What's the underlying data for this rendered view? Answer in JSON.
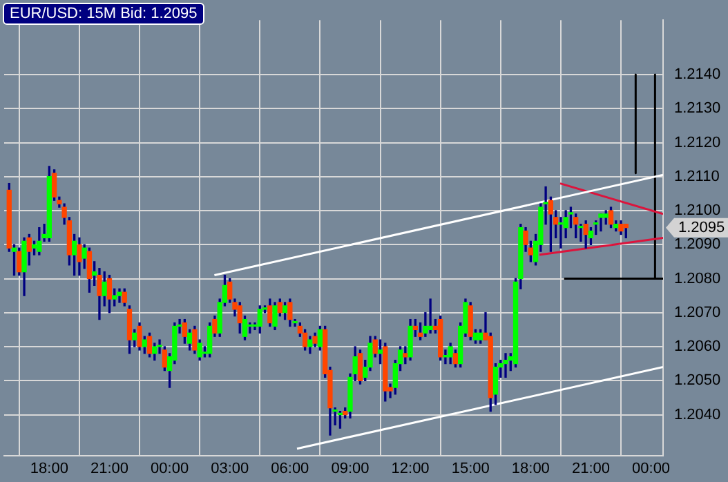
{
  "chart_data": {
    "type": "candlestick",
    "title": "EUR/USD: 15M Bid: 1.2095",
    "x": [
      "--01-01T16:00",
      "--01-01T16:15",
      "--01-01T16:30",
      "--01-01T16:45",
      "--01-01T17:00",
      "--01-01T17:15",
      "--01-01T17:30",
      "--01-01T17:45",
      "--01-01T18:00",
      "--01-01T18:15",
      "--01-01T18:30",
      "--01-01T18:45",
      "--01-01T19:00",
      "--01-01T19:15",
      "--01-01T19:30",
      "--01-01T19:45",
      "--01-01T20:00",
      "--01-01T20:15",
      "--01-01T20:30",
      "--01-01T20:45",
      "--01-01T21:00",
      "--01-01T21:15",
      "--01-01T21:30",
      "--01-01T21:45",
      "--01-01T22:00",
      "--01-01T22:15",
      "--01-01T22:30",
      "--01-01T22:45",
      "--01-01T23:00",
      "--01-01T23:15",
      "--01-01T23:30",
      "--01-01T23:45",
      "--01-02T00:00",
      "--01-02T00:15",
      "--01-02T00:30",
      "--01-02T00:45",
      "--01-02T01:00",
      "--01-02T01:15",
      "--01-02T01:30",
      "--01-02T01:45",
      "--01-02T02:00",
      "--01-02T02:15",
      "--01-02T02:30",
      "--01-02T02:45",
      "--01-02T03:00",
      "--01-02T03:15",
      "--01-02T03:30",
      "--01-02T03:45",
      "--01-02T04:00",
      "--01-02T04:15",
      "--01-02T04:30",
      "--01-02T04:45",
      "--01-02T05:00",
      "--01-02T05:15",
      "--01-02T05:30",
      "--01-02T05:45",
      "--01-02T06:00",
      "--01-02T06:15",
      "--01-02T06:30",
      "--01-02T06:45",
      "--01-02T07:00",
      "--01-02T07:15",
      "--01-02T07:30",
      "--01-02T07:45",
      "--01-02T08:00",
      "--01-02T08:15",
      "--01-02T08:30",
      "--01-02T08:45",
      "--01-02T09:00",
      "--01-02T09:15",
      "--01-02T09:30",
      "--01-02T09:45",
      "--01-02T10:00",
      "--01-02T10:15",
      "--01-02T10:30",
      "--01-02T10:45",
      "--01-02T11:00",
      "--01-02T11:15",
      "--01-02T11:30",
      "--01-02T11:45",
      "--01-02T12:00",
      "--01-02T12:15",
      "--01-02T12:30",
      "--01-02T12:45",
      "--01-02T13:00",
      "--01-02T13:15",
      "--01-02T13:30",
      "--01-02T13:45",
      "--01-02T14:00",
      "--01-02T14:15",
      "--01-02T14:30",
      "--01-02T14:45",
      "--01-02T15:00",
      "--01-02T15:15",
      "--01-02T15:30",
      "--01-02T15:45",
      "--01-02T16:00",
      "--01-02T16:15",
      "--01-02T16:30",
      "--01-02T16:45",
      "--01-02T17:00",
      "--01-02T17:15",
      "--01-02T17:30",
      "--01-02T17:45",
      "--01-02T18:00",
      "--01-02T18:15",
      "--01-02T18:30",
      "--01-02T18:45",
      "--01-02T19:00",
      "--01-02T19:15",
      "--01-02T19:30",
      "--01-02T19:45",
      "--01-02T20:00",
      "--01-02T20:15",
      "--01-02T20:30",
      "--01-02T20:45",
      "--01-02T21:00",
      "--01-02T21:15",
      "--01-02T21:30",
      "--01-02T21:45",
      "--01-02T22:00",
      "--01-02T22:15",
      "--01-02T22:30",
      "--01-02T22:45"
    ],
    "ohlc": [
      [
        1.2106,
        1.2108,
        1.2088,
        1.2089
      ],
      [
        1.2088,
        1.209,
        1.2081,
        1.2089
      ],
      [
        1.2088,
        1.2089,
        1.2081,
        1.2082
      ],
      [
        1.2082,
        1.2092,
        1.2075,
        1.2091
      ],
      [
        1.2092,
        1.2093,
        1.2084,
        1.2088
      ],
      [
        1.2089,
        1.2091,
        1.2087,
        1.209
      ],
      [
        1.2088,
        1.2095,
        1.2087,
        1.2091
      ],
      [
        1.2092,
        1.2096,
        1.2091,
        1.2093
      ],
      [
        1.2092,
        1.2113,
        1.2091,
        1.211
      ],
      [
        1.2111,
        1.2112,
        1.2103,
        1.2104
      ],
      [
        1.2103,
        1.2104,
        1.2101,
        1.2102
      ],
      [
        1.2101,
        1.2102,
        1.2096,
        1.2098
      ],
      [
        1.2097,
        1.2098,
        1.2084,
        1.2087
      ],
      [
        1.2087,
        1.2093,
        1.2081,
        1.2091
      ],
      [
        1.209,
        1.2092,
        1.2081,
        1.2085
      ],
      [
        1.2086,
        1.209,
        1.2083,
        1.2089
      ],
      [
        1.2088,
        1.2089,
        1.2076,
        1.208
      ],
      [
        1.2081,
        1.2085,
        1.2078,
        1.2082
      ],
      [
        1.2081,
        1.2083,
        1.2068,
        1.2075
      ],
      [
        1.2075,
        1.2082,
        1.2072,
        1.2079
      ],
      [
        1.208,
        1.2081,
        1.207,
        1.2074
      ],
      [
        1.2074,
        1.2077,
        1.2072,
        1.2075
      ],
      [
        1.2075,
        1.2077,
        1.2073,
        1.2076
      ],
      [
        1.2076,
        1.2077,
        1.2072,
        1.2073
      ],
      [
        1.2071,
        1.2072,
        1.2058,
        1.2062
      ],
      [
        1.2062,
        1.2065,
        1.206,
        1.2064
      ],
      [
        1.2066,
        1.2067,
        1.2059,
        1.206
      ],
      [
        1.206,
        1.2063,
        1.2058,
        1.2062
      ],
      [
        1.2063,
        1.2064,
        1.2057,
        1.2058
      ],
      [
        1.2058,
        1.2061,
        1.2056,
        1.206
      ],
      [
        1.206,
        1.2062,
        1.2058,
        1.206
      ],
      [
        1.2059,
        1.206,
        1.2053,
        1.2054
      ],
      [
        1.2053,
        1.2058,
        1.2048,
        1.2057
      ],
      [
        1.2056,
        1.2067,
        1.2055,
        1.2066
      ],
      [
        1.2066,
        1.2068,
        1.2064,
        1.2066
      ],
      [
        1.2067,
        1.2068,
        1.2061,
        1.2063
      ],
      [
        1.2061,
        1.2065,
        1.2059,
        1.2064
      ],
      [
        1.2065,
        1.2066,
        1.2058,
        1.2059
      ],
      [
        1.2057,
        1.2062,
        1.2056,
        1.2061
      ],
      [
        1.2058,
        1.206,
        1.2057,
        1.2058
      ],
      [
        1.2058,
        1.2067,
        1.2057,
        1.2066
      ],
      [
        1.2068,
        1.2069,
        1.2063,
        1.2064
      ],
      [
        1.2064,
        1.2074,
        1.2063,
        1.2073
      ],
      [
        1.2073,
        1.2081,
        1.2072,
        1.2078
      ],
      [
        1.2079,
        1.208,
        1.2073,
        1.2074
      ],
      [
        1.2073,
        1.2074,
        1.2069,
        1.2071
      ],
      [
        1.2072,
        1.2073,
        1.2064,
        1.2067
      ],
      [
        1.2063,
        1.2069,
        1.2062,
        1.2068
      ],
      [
        1.2066,
        1.2067,
        1.2064,
        1.2066
      ],
      [
        1.2066,
        1.2067,
        1.2065,
        1.2066
      ],
      [
        1.2066,
        1.2072,
        1.2064,
        1.2071
      ],
      [
        1.2071,
        1.2072,
        1.207,
        1.2071
      ],
      [
        1.2072,
        1.2074,
        1.2066,
        1.2067
      ],
      [
        1.2066,
        1.2073,
        1.2065,
        1.2072
      ],
      [
        1.2073,
        1.2074,
        1.2069,
        1.207
      ],
      [
        1.207,
        1.2073,
        1.2068,
        1.2072
      ],
      [
        1.2073,
        1.2074,
        1.2066,
        1.2068
      ],
      [
        1.2067,
        1.2068,
        1.2066,
        1.2067
      ],
      [
        1.2066,
        1.2067,
        1.2063,
        1.2064
      ],
      [
        1.2064,
        1.2065,
        1.2059,
        1.206
      ],
      [
        1.206,
        1.2063,
        1.2058,
        1.2062
      ],
      [
        1.2063,
        1.2064,
        1.206,
        1.2061
      ],
      [
        1.206,
        1.2066,
        1.2059,
        1.2065
      ],
      [
        1.2065,
        1.2066,
        1.2051,
        1.2052
      ],
      [
        1.2053,
        1.2054,
        1.2034,
        1.2042
      ],
      [
        1.2041,
        1.2042,
        1.2037,
        1.2041
      ],
      [
        1.204,
        1.2041,
        1.2036,
        1.204
      ],
      [
        1.2041,
        1.2042,
        1.2039,
        1.204
      ],
      [
        1.2041,
        1.2052,
        1.2039,
        1.2051
      ],
      [
        1.2052,
        1.206,
        1.205,
        1.2057
      ],
      [
        1.2058,
        1.2059,
        1.2049,
        1.205
      ],
      [
        1.2051,
        1.2056,
        1.205,
        1.2054
      ],
      [
        1.2054,
        1.2063,
        1.2053,
        1.2061
      ],
      [
        1.2062,
        1.2063,
        1.2057,
        1.2058
      ],
      [
        1.2058,
        1.2062,
        1.2055,
        1.2059
      ],
      [
        1.206,
        1.2061,
        1.2044,
        1.2047
      ],
      [
        1.2048,
        1.2049,
        1.2045,
        1.2047
      ],
      [
        1.2048,
        1.2056,
        1.2046,
        1.2055
      ],
      [
        1.2055,
        1.206,
        1.2053,
        1.2059
      ],
      [
        1.2058,
        1.206,
        1.2055,
        1.2057
      ],
      [
        1.2057,
        1.2068,
        1.2056,
        1.2066
      ],
      [
        1.2066,
        1.2068,
        1.2063,
        1.2065
      ],
      [
        1.2064,
        1.2067,
        1.2062,
        1.2063
      ],
      [
        1.2064,
        1.207,
        1.2063,
        1.2066
      ],
      [
        1.2065,
        1.2074,
        1.2064,
        1.2066
      ],
      [
        1.2066,
        1.2068,
        1.2064,
        1.2065
      ],
      [
        1.2068,
        1.2069,
        1.2056,
        1.2057
      ],
      [
        1.2057,
        1.2059,
        1.2055,
        1.2057
      ],
      [
        1.2057,
        1.2061,
        1.2055,
        1.206
      ],
      [
        1.2058,
        1.2059,
        1.2054,
        1.2055
      ],
      [
        1.2055,
        1.2067,
        1.2054,
        1.2066
      ],
      [
        1.2064,
        1.2074,
        1.2063,
        1.2073
      ],
      [
        1.2072,
        1.2073,
        1.2062,
        1.2063
      ],
      [
        1.2062,
        1.2065,
        1.2061,
        1.2064
      ],
      [
        1.2062,
        1.2065,
        1.2061,
        1.2064
      ],
      [
        1.2064,
        1.207,
        1.2062,
        1.2062
      ],
      [
        1.2063,
        1.2064,
        1.2041,
        1.2045
      ],
      [
        1.2046,
        1.2055,
        1.2043,
        1.2054
      ],
      [
        1.2054,
        1.2056,
        1.2051,
        1.2055
      ],
      [
        1.2055,
        1.2058,
        1.2051,
        1.2056
      ],
      [
        1.2056,
        1.2058,
        1.2053,
        1.2057
      ],
      [
        1.2055,
        1.208,
        1.2054,
        1.2079
      ],
      [
        1.208,
        1.2096,
        1.2077,
        1.2095
      ],
      [
        1.2094,
        1.2095,
        1.2088,
        1.209
      ],
      [
        1.2089,
        1.2091,
        1.2085,
        1.2087
      ],
      [
        1.2085,
        1.2093,
        1.2084,
        1.2091
      ],
      [
        1.209,
        1.2102,
        1.2088,
        1.2101
      ],
      [
        1.2102,
        1.2107,
        1.2096,
        1.2102
      ],
      [
        1.2103,
        1.2104,
        1.2088,
        1.2099
      ],
      [
        1.2098,
        1.21,
        1.2092,
        1.2096
      ],
      [
        1.2096,
        1.2098,
        1.2089,
        1.2096
      ],
      [
        1.2095,
        1.21,
        1.2092,
        1.2098
      ],
      [
        1.2099,
        1.2101,
        1.2095,
        1.2099
      ],
      [
        1.2098,
        1.2099,
        1.2092,
        1.2096
      ],
      [
        1.2095,
        1.2096,
        1.2091,
        1.2095
      ],
      [
        1.2096,
        1.2097,
        1.2089,
        1.2093
      ],
      [
        1.2092,
        1.2095,
        1.209,
        1.2094
      ],
      [
        1.2096,
        1.2097,
        1.2093,
        1.2096
      ],
      [
        1.2098,
        1.2099,
        1.2094,
        1.2099
      ],
      [
        1.2098,
        1.21,
        1.2096,
        1.2099
      ],
      [
        1.21,
        1.2101,
        1.2095,
        1.2096
      ],
      [
        1.2095,
        1.2097,
        1.2094,
        1.2096
      ],
      [
        1.2096,
        1.2097,
        1.2093,
        1.2094
      ],
      [
        1.2096,
        1.2096,
        1.2092,
        1.2095
      ]
    ],
    "series": [
      {
        "type": "line",
        "color": "#ffffff",
        "x": [
          "--01-02T02:14",
          "--01-03T00:36"
        ],
        "values": [
          1.2081,
          1.21105
        ]
      },
      {
        "type": "line",
        "color": "#ffffff",
        "x": [
          "--01-02T06:21",
          "--01-03T00:36"
        ],
        "values": [
          1.203,
          1.2054
        ]
      },
      {
        "type": "line",
        "color": "#dc143c",
        "x": [
          "--01-02T19:28",
          "--01-03T00:36"
        ],
        "values": [
          1.2108,
          1.2099
        ]
      },
      {
        "type": "line",
        "color": "#dc143c",
        "x": [
          "--01-02T18:26",
          "--01-03T00:36"
        ],
        "values": [
          1.2087,
          1.2092
        ]
      },
      {
        "type": "line",
        "color": "#000000",
        "x": [
          "--01-02T23:14",
          "--01-02T23:14"
        ],
        "values": [
          1.214,
          1.2111
        ]
      },
      {
        "type": "line",
        "color": "#000000",
        "x": [
          "--01-03T00:12",
          "--01-03T00:12"
        ],
        "values": [
          1.214,
          1.208
        ]
      },
      {
        "type": "line",
        "color": "#000000",
        "x": [
          "--01-02T19:40",
          "--01-03T00:36"
        ],
        "values": [
          1.208,
          1.208
        ]
      }
    ],
    "xlim": [
      "--01-01T15:45",
      "--01-03T00:36"
    ],
    "xticks": [
      {
        "value": "--01-01T18:00",
        "label": "18:00"
      },
      {
        "value": "--01-01T21:00",
        "label": "21:00"
      },
      {
        "value": "--01-02T00:00",
        "label": "00:00"
      },
      {
        "value": "--01-02T03:00",
        "label": "03:00"
      },
      {
        "value": "--01-02T06:00",
        "label": "06:00"
      },
      {
        "value": "--01-02T09:00",
        "label": "09:00"
      },
      {
        "value": "--01-02T12:00",
        "label": "12:00"
      },
      {
        "value": "--01-02T15:00",
        "label": "15:00"
      },
      {
        "value": "--01-02T18:00",
        "label": "18:00"
      },
      {
        "value": "--01-02T21:00",
        "label": "21:00"
      },
      {
        "value": "--01-03T00:00",
        "label": "00:00"
      }
    ],
    "ylim": [
      1.2028,
      1.2156
    ],
    "yticks": [
      {
        "value": 1.204,
        "label": "1.2040"
      },
      {
        "value": 1.205,
        "label": "1.2050"
      },
      {
        "value": 1.206,
        "label": "1.2060"
      },
      {
        "value": 1.207,
        "label": "1.2070"
      },
      {
        "value": 1.208,
        "label": "1.2080"
      },
      {
        "value": 1.209,
        "label": "1.2090"
      },
      {
        "value": 1.21,
        "label": "1.2100"
      },
      {
        "value": 1.211,
        "label": "1.2110"
      },
      {
        "value": 1.212,
        "label": "1.2120"
      },
      {
        "value": 1.213,
        "label": "1.2130"
      },
      {
        "value": 1.214,
        "label": "1.2140"
      }
    ],
    "annotations": [
      "1.2095"
    ],
    "grid": true,
    "legend": false
  }
}
